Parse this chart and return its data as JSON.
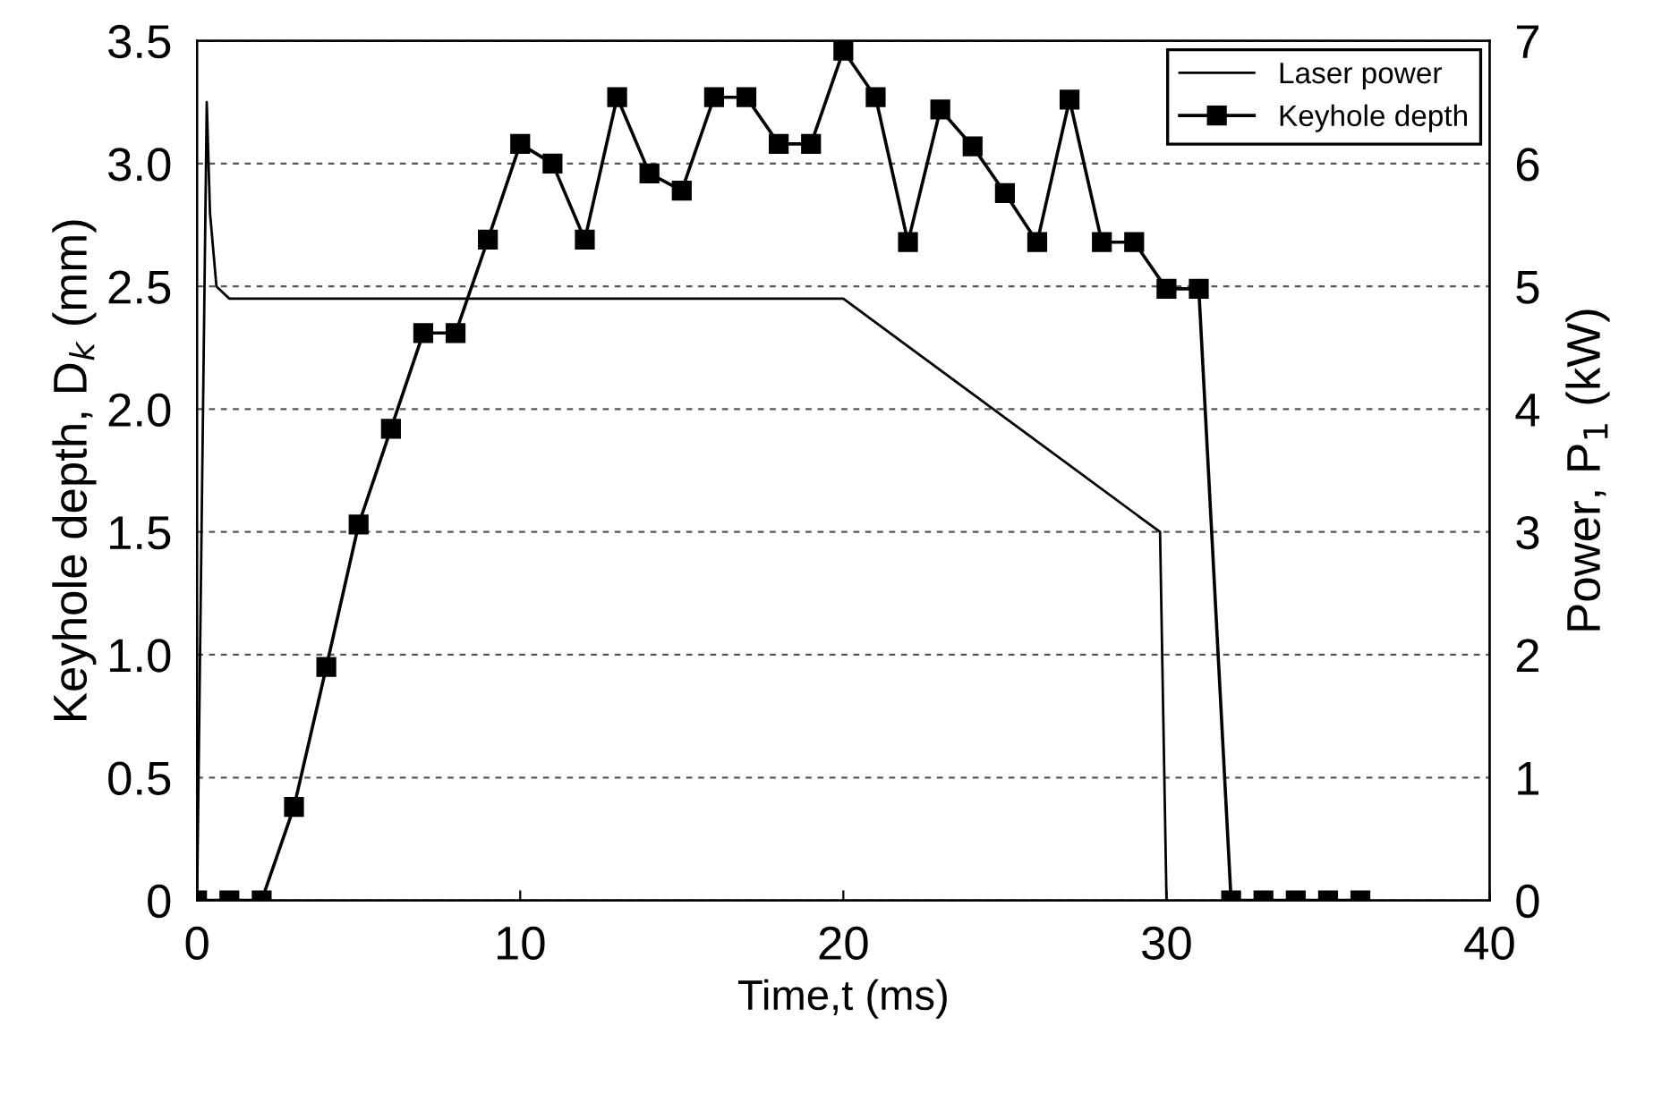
{
  "chart_data": {
    "type": "line",
    "xlabel": "Time,t (ms)",
    "ylabel": "Keyhole depth, D$_{k}$ (mm)",
    "y2label": "Power, P$_{1}$ (kW)",
    "xlim": [
      0,
      40
    ],
    "xticks": [
      0,
      10,
      20,
      30,
      40
    ],
    "ylim": [
      0,
      3.5
    ],
    "yticks": [
      {
        "value": 0,
        "label": "0"
      },
      0.5,
      {
        "value": 1,
        "label": "1.0"
      },
      1.5,
      {
        "value": 2,
        "label": "2.0"
      },
      2.5,
      {
        "value": 3,
        "label": "3.0"
      },
      3.5
    ],
    "y2lim": [
      0,
      7
    ],
    "y2ticks": [
      0,
      1,
      2,
      3,
      4,
      5,
      6,
      7
    ],
    "grid": "y",
    "legend": "top right",
    "series": [
      {
        "name": "Laser power",
        "color": "#000000",
        "axis": "y2",
        "marker": "none",
        "x": [
          0,
          0.3,
          0.4,
          0.6,
          1,
          20,
          29.8,
          30
        ],
        "values": [
          0,
          6.5,
          5.6,
          5.0,
          4.9,
          4.9,
          3.0,
          0
        ]
      },
      {
        "name": "Keyhole depth",
        "color": "#000000",
        "marker": "square",
        "x": [
          0,
          1,
          2,
          3,
          4,
          5,
          6,
          7,
          8,
          9,
          10,
          11,
          12,
          13,
          14,
          15,
          16,
          17,
          18,
          19,
          20,
          21,
          22,
          23,
          24,
          25,
          26,
          27,
          28,
          29,
          30,
          31,
          32,
          33,
          34,
          35,
          36
        ],
        "values": [
          0,
          0,
          0,
          0.38,
          0.95,
          1.53,
          1.92,
          2.31,
          2.31,
          2.69,
          3.08,
          3.0,
          2.69,
          3.27,
          2.96,
          2.89,
          3.27,
          3.27,
          3.08,
          3.08,
          3.46,
          3.27,
          2.68,
          3.22,
          3.07,
          2.88,
          2.68,
          3.26,
          2.68,
          2.68,
          2.49,
          2.49,
          0,
          0,
          0,
          0,
          0
        ]
      }
    ]
  }
}
